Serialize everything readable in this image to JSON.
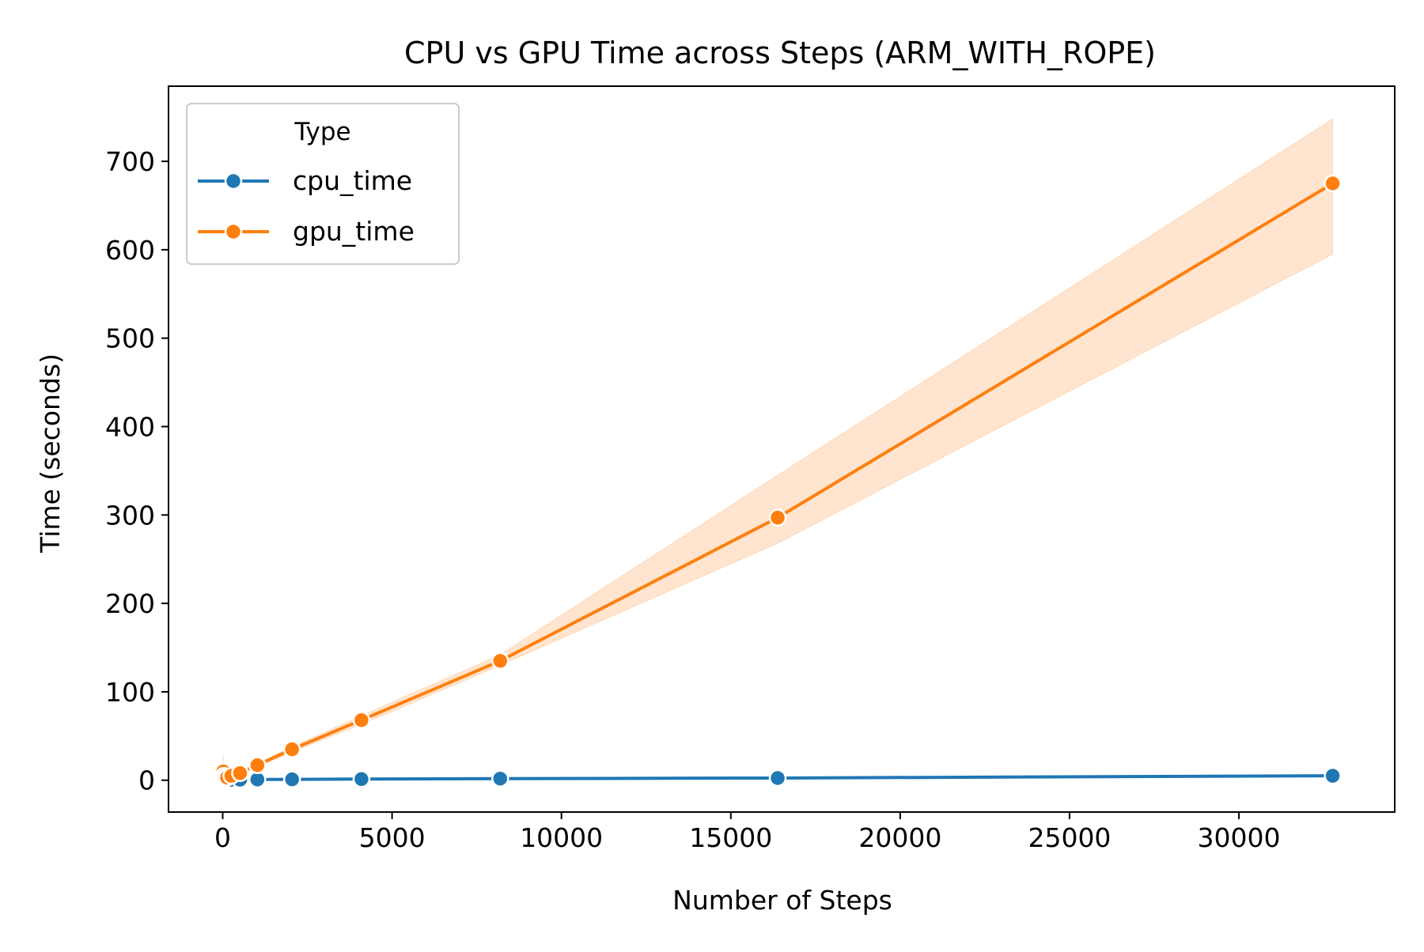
{
  "chart_data": {
    "type": "line",
    "title": "CPU vs GPU Time across Steps (ARM_WITH_ROPE)",
    "xlabel": "Number of Steps",
    "ylabel": "Time (seconds)",
    "xlim": [
      -1600,
      34600
    ],
    "ylim": [
      -36,
      785
    ],
    "xticks": [
      0,
      5000,
      10000,
      15000,
      20000,
      25000,
      30000
    ],
    "yticks": [
      0,
      100,
      200,
      300,
      400,
      500,
      600,
      700
    ],
    "grid": false,
    "legend": {
      "title": "Type",
      "placement": "top-left"
    },
    "x": [
      16,
      32,
      64,
      128,
      256,
      512,
      1024,
      2048,
      4096,
      8192,
      16384,
      32768
    ],
    "series": [
      {
        "name": "cpu_time",
        "color": "#1f77b4",
        "marker": "circle",
        "values": [
          0.5,
          0.5,
          0.5,
          0.5,
          0.5,
          0.6,
          0.8,
          1.0,
          1.3,
          1.8,
          2.5,
          5.0
        ],
        "ci_lower": [
          0.4,
          0.4,
          0.4,
          0.4,
          0.4,
          0.5,
          0.7,
          0.9,
          1.1,
          1.5,
          2.0,
          4.0
        ],
        "ci_upper": [
          0.6,
          0.6,
          0.6,
          0.6,
          0.6,
          0.7,
          0.9,
          1.1,
          1.5,
          2.1,
          3.0,
          6.0
        ]
      },
      {
        "name": "gpu_time",
        "color": "#ff7f0e",
        "marker": "circle",
        "values": [
          10,
          5,
          3,
          3,
          5,
          8,
          17,
          35,
          68,
          135,
          297,
          675
        ],
        "ci_lower": [
          1,
          1,
          1,
          1.5,
          3.5,
          6.5,
          15,
          32,
          63,
          130,
          268,
          595
        ],
        "ci_upper": [
          30,
          18,
          10,
          7,
          9,
          10.5,
          19,
          38,
          73,
          142,
          345,
          748
        ]
      }
    ]
  }
}
